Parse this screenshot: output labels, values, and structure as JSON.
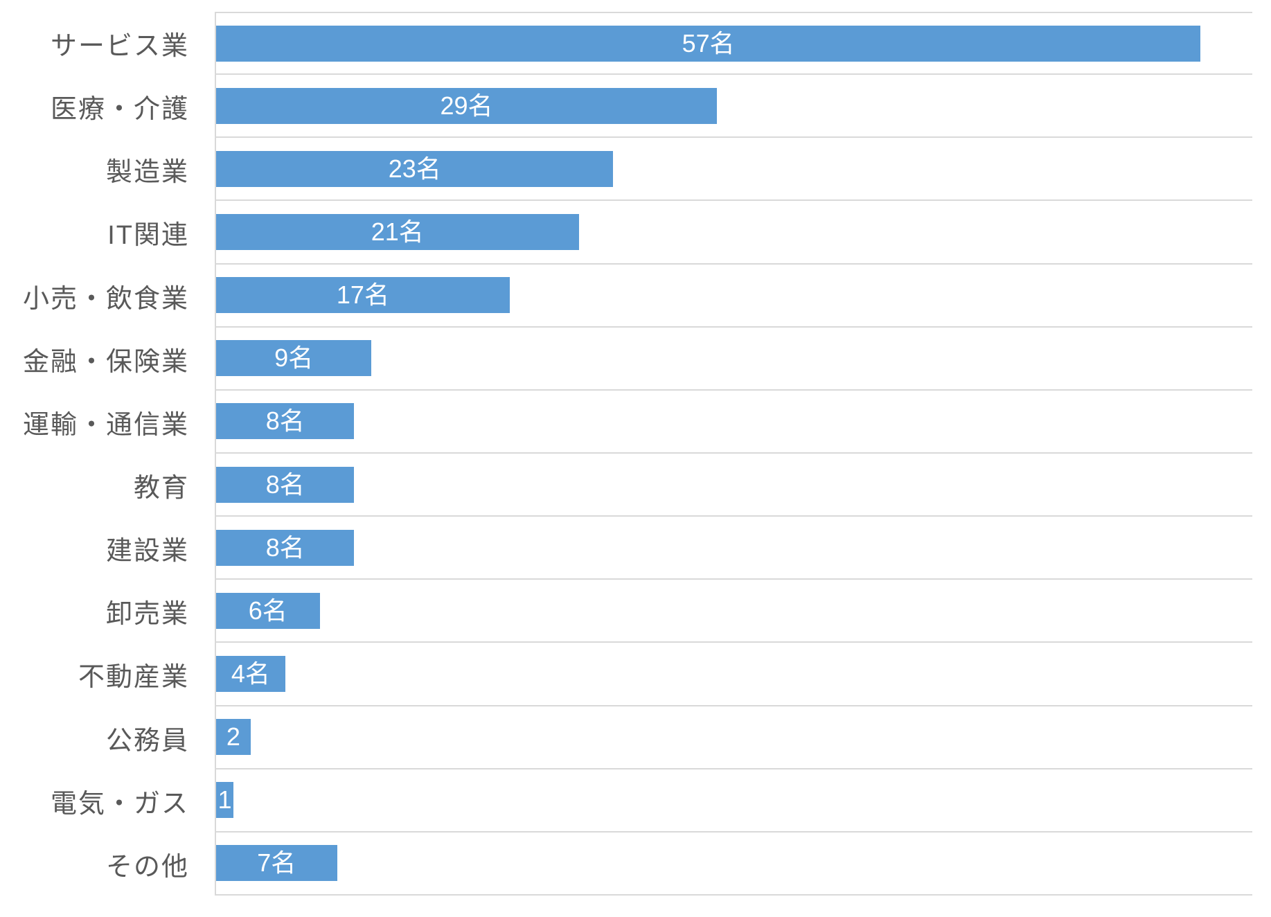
{
  "chart_data": {
    "type": "bar",
    "orientation": "horizontal",
    "title": "",
    "xlabel": "",
    "ylabel": "",
    "categories": [
      "サービス業",
      "医療・介護",
      "製造業",
      "IT関連",
      "小売・飲食業",
      "金融・保険業",
      "運輸・通信業",
      "教育",
      "建設業",
      "卸売業",
      "不動産業",
      "公務員",
      "電気・ガス",
      "その他"
    ],
    "values": [
      57,
      29,
      23,
      21,
      17,
      9,
      8,
      8,
      8,
      6,
      4,
      2,
      1,
      7
    ],
    "value_labels": [
      "57名",
      "29名",
      "23名",
      "21名",
      "17名",
      "9名",
      "8名",
      "8名",
      "8名",
      "6名",
      "4名",
      "2",
      "1",
      "7名"
    ],
    "unit": "名",
    "xlim": [
      0,
      60
    ],
    "grid": "category-separator-lines",
    "legend": "none",
    "data_label_position": "inside-center",
    "bar_color": "#5b9bd5",
    "gridline_color": "#d9d9d9",
    "axis_line_color": "#d9d9d9",
    "category_label_color": "#595959",
    "value_label_color": "#ffffff",
    "background_color": "#ffffff"
  }
}
